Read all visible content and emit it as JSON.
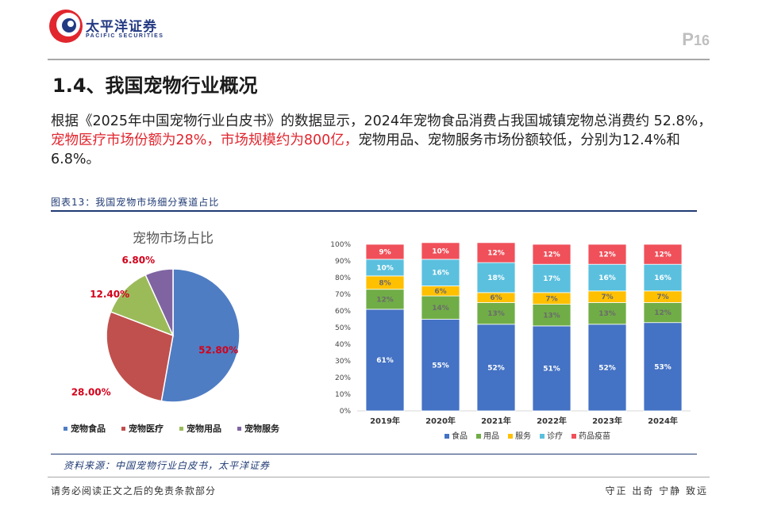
{
  "header": {
    "brand_cn": "太平洋证券",
    "brand_en": "PACIFIC SECURITIES",
    "page_p": "P",
    "page_n": "16"
  },
  "section": {
    "title": "1.4、我国宠物行业概况"
  },
  "paragraph": {
    "part1": "根据《2025年中国宠物行业白皮书》的数据显示，2024年宠物食品消费占我国城镇宠物总消费约 52.8%，",
    "highlight": "宠物医疗市场份额为28%，市场规模约为800亿，",
    "part2": "宠物用品、宠物服务市场份额较低，分别为12.4%和6.8%。"
  },
  "figure": {
    "caption": "图表13：我国宠物市场细分赛道占比",
    "source": "资料来源：中国宠物行业白皮书，太平洋证券"
  },
  "footer": {
    "left": "请务必阅读正文之后的免责条款部分",
    "right": "守正 出奇 宁静 致远"
  },
  "colors": {
    "food": "#4f7dc3",
    "medical": "#c0504d",
    "supplies": "#9bbb59",
    "services": "#8064a2",
    "bar_food": "#4472c4",
    "bar_supplies": "#70ad47",
    "bar_services": "#ffc000",
    "bar_clinic": "#5bc0de",
    "bar_vaccine": "#f0505a"
  },
  "chart_data": [
    {
      "type": "pie",
      "title": "宠物市场占比",
      "labels": [
        "宠物食品",
        "宠物医疗",
        "宠物用品",
        "宠物服务"
      ],
      "values": [
        52.8,
        28.0,
        12.4,
        6.8
      ],
      "value_labels": [
        "52.80%",
        "28.00%",
        "12.40%",
        "6.80%"
      ],
      "legend_position": "bottom"
    },
    {
      "type": "bar",
      "stacked": true,
      "categories": [
        "2019年",
        "2020年",
        "2021年",
        "2022年",
        "2023年",
        "2024年"
      ],
      "series": [
        {
          "name": "食品",
          "values": [
            61,
            55,
            52,
            51,
            52,
            53
          ]
        },
        {
          "name": "用品",
          "values": [
            12,
            14,
            13,
            13,
            13,
            12
          ]
        },
        {
          "name": "服务",
          "values": [
            8,
            6,
            6,
            7,
            7,
            7
          ]
        },
        {
          "name": "诊疗",
          "values": [
            10,
            16,
            18,
            17,
            16,
            16
          ]
        },
        {
          "name": "药品疫苗",
          "values": [
            9,
            10,
            12,
            12,
            12,
            12
          ]
        }
      ],
      "ylim": [
        0,
        100
      ],
      "yticks": [
        "0%",
        "10%",
        "20%",
        "30%",
        "40%",
        "50%",
        "60%",
        "70%",
        "80%",
        "90%",
        "100%"
      ],
      "legend_position": "bottom"
    }
  ]
}
